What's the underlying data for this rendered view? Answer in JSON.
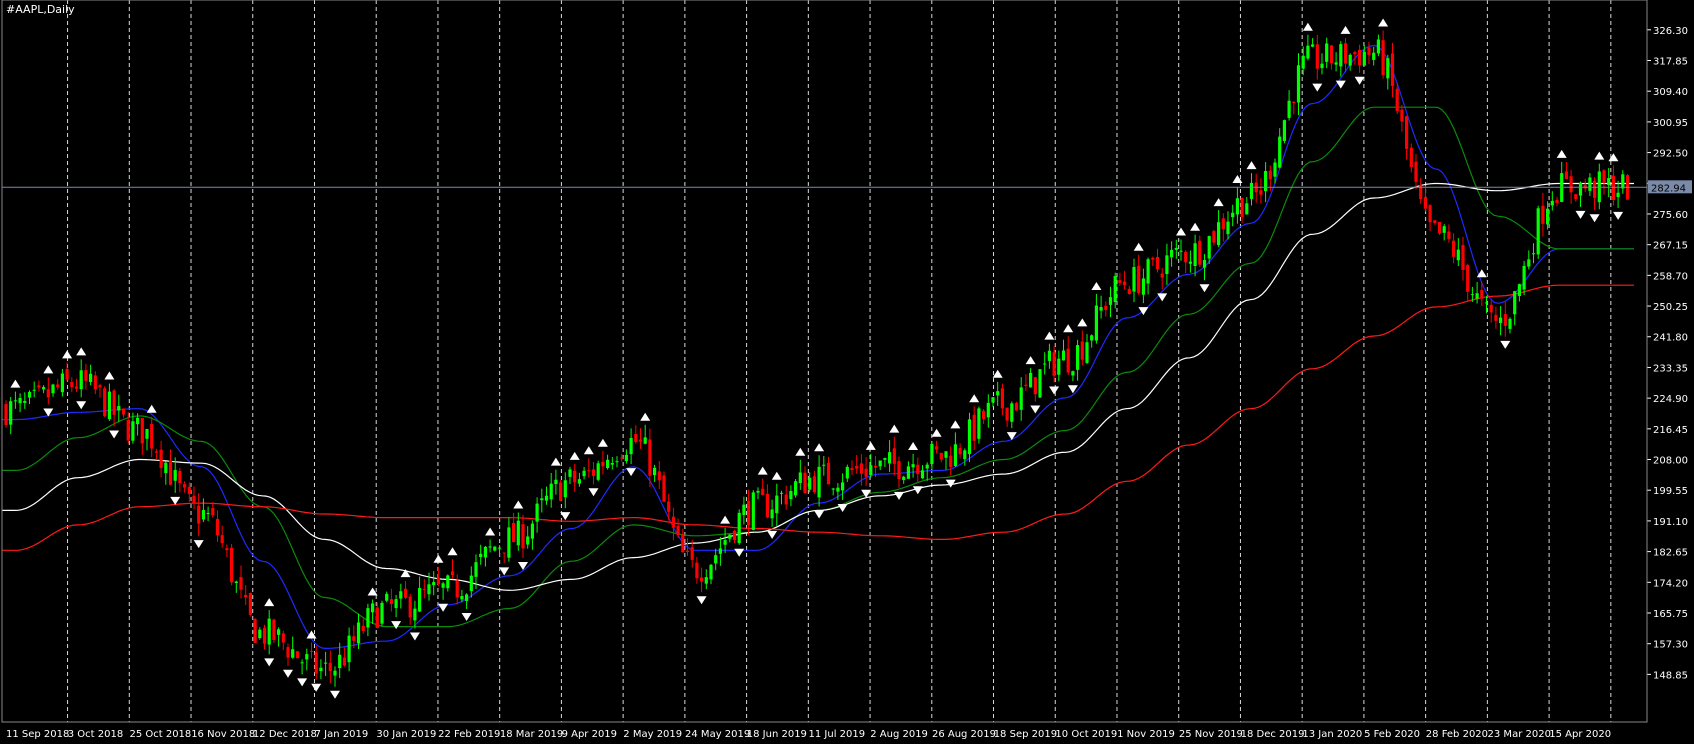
{
  "window": {
    "symbol_title": "#AAPL,Daily"
  },
  "colors": {
    "background": "#000000",
    "axis_text": "#ffffff",
    "grid": "#ffffff",
    "bull_candle": "#00ff00",
    "bear_candle": "#ff0000",
    "ma_blue": "#1e2bff",
    "ma_green": "#0b8a0b",
    "ma_white": "#ffffff",
    "ma_red": "#ff1a1a",
    "fractal": "#ffffff",
    "price_line": "#7a8aa8",
    "price_tag_bg": "#7a8aa8"
  },
  "chart_data": {
    "type": "line",
    "title": "#AAPL,Daily",
    "current_price": 282.94,
    "current_price_label": "282.94",
    "y_ticks": [
      "326.30",
      "317.85",
      "309.40",
      "300.95",
      "292.50",
      "284.05",
      "275.60",
      "267.15",
      "258.70",
      "250.25",
      "241.80",
      "233.35",
      "224.90",
      "216.45",
      "208.00",
      "199.55",
      "191.10",
      "182.65",
      "174.20",
      "165.75",
      "157.30",
      "148.85"
    ],
    "ylim": [
      144.0,
      329.0
    ],
    "x_labels": [
      "11 Sep 2018",
      "3 Oct 2018",
      "25 Oct 2018",
      "16 Nov 2018",
      "12 Dec 2018",
      "7 Jan 2019",
      "30 Jan 2019",
      "22 Feb 2019",
      "18 Mar 2019",
      "9 Apr 2019",
      "2 May 2019",
      "24 May 2019",
      "18 Jun 2019",
      "11 Jul 2019",
      "2 Aug 2019",
      "26 Aug 2019",
      "18 Sep 2019",
      "10 Oct 2019",
      "1 Nov 2019",
      "25 Nov 2019",
      "18 Dec 2019",
      "13 Jan 2020",
      "5 Feb 2020",
      "28 Feb 2020",
      "23 Mar 2020",
      "15 Apr 2020"
    ],
    "close_path": {
      "description": "approximate daily close trajectory, one anchor per x label",
      "values": [
        222,
        229,
        216,
        193,
        160,
        150,
        167,
        172,
        186,
        202,
        213,
        178,
        195,
        203,
        206,
        209,
        223,
        236,
        257,
        265,
        280,
        318,
        320,
        270,
        246,
        283
      ]
    },
    "series": [
      {
        "name": "",
        "color_key": "ma_blue",
        "values": [
          219,
          221,
          222,
          206,
          180,
          156,
          158,
          168,
          176,
          189,
          206,
          183,
          183,
          196,
          204,
          205,
          213,
          225,
          247,
          259,
          273,
          306,
          322,
          288,
          251,
          266
        ]
      },
      {
        "name": "",
        "color_key": "ma_green",
        "values": [
          205,
          214,
          220,
          213,
          195,
          170,
          162,
          162,
          167,
          180,
          190,
          187,
          188,
          194,
          199,
          203,
          208,
          216,
          232,
          248,
          262,
          290,
          305,
          305,
          275,
          266
        ]
      },
      {
        "name": "",
        "color_key": "ma_white",
        "values": [
          194,
          203,
          208,
          207,
          198,
          186,
          178,
          175,
          172,
          175,
          181,
          185,
          188,
          194,
          198,
          201,
          204,
          210,
          222,
          236,
          252,
          270,
          280,
          284,
          282,
          284
        ]
      },
      {
        "name": "",
        "color_key": "ma_red",
        "values": [
          183,
          190,
          195,
          196,
          195,
          193,
          192,
          192,
          192,
          191,
          192,
          190,
          189,
          188,
          187,
          186,
          188,
          193,
          202,
          212,
          222,
          233,
          242,
          250,
          253,
          256
        ]
      }
    ]
  }
}
